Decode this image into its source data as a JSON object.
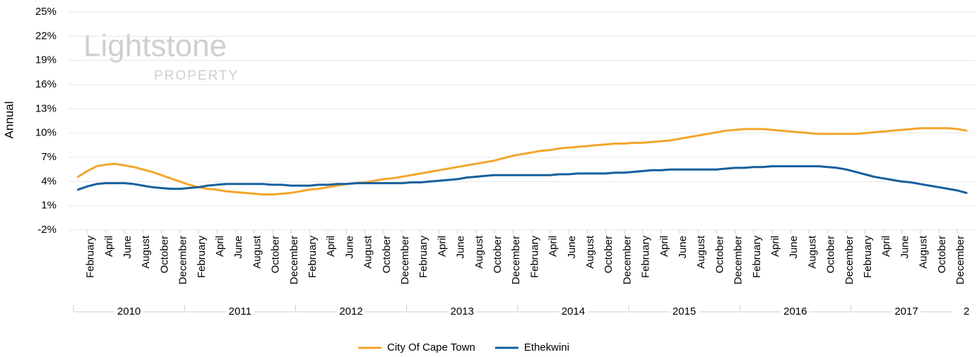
{
  "chart_data": {
    "type": "line",
    "watermark": [
      "Lightstone",
      "PROPERTY"
    ],
    "y_label": "Annual",
    "ylim": [
      -2,
      25
    ],
    "yticks": [
      {
        "value": -2,
        "label": "-2%"
      },
      {
        "value": 1,
        "label": "1%"
      },
      {
        "value": 4,
        "label": "4%"
      },
      {
        "value": 7,
        "label": "7%"
      },
      {
        "value": 10,
        "label": "10%"
      },
      {
        "value": 13,
        "label": "13%"
      },
      {
        "value": 16,
        "label": "16%"
      },
      {
        "value": 19,
        "label": "19%"
      },
      {
        "value": 22,
        "label": "22%"
      },
      {
        "value": 25,
        "label": "25%"
      }
    ],
    "grid": true,
    "categories": [
      null,
      "February",
      null,
      "April",
      null,
      "June",
      null,
      "August",
      null,
      "October",
      null,
      "December",
      null,
      "February",
      null,
      "April",
      null,
      "June",
      null,
      "August",
      null,
      "October",
      null,
      "December",
      null,
      "February",
      null,
      "April",
      null,
      "June",
      null,
      "August",
      null,
      "October",
      null,
      "December",
      null,
      "February",
      null,
      "April",
      null,
      "June",
      null,
      "August",
      null,
      "October",
      null,
      "December",
      null,
      "February",
      null,
      "April",
      null,
      "June",
      null,
      "August",
      null,
      "October",
      null,
      "December",
      null,
      "February",
      null,
      "April",
      null,
      "June",
      null,
      "August",
      null,
      "October",
      null,
      "December",
      null,
      "February",
      null,
      "April",
      null,
      "June",
      null,
      "August",
      null,
      "October",
      null,
      "December",
      null,
      "February",
      null,
      "April",
      null,
      "June",
      null,
      "August",
      null,
      "October",
      null,
      "December",
      null
    ],
    "x_groups": [
      "2010",
      "2011",
      "2012",
      "2013",
      "2014",
      "2015",
      "2016",
      "2017",
      "2"
    ],
    "legend": "bottom",
    "series": [
      {
        "name": "City Of Cape Town",
        "color": "#f2a72b",
        "values": [
          4.6,
          5.3,
          5.9,
          6.1,
          6.2,
          6.0,
          5.8,
          5.5,
          5.2,
          4.8,
          4.4,
          4.0,
          3.6,
          3.3,
          3.1,
          3.0,
          2.8,
          2.7,
          2.6,
          2.5,
          2.4,
          2.4,
          2.5,
          2.6,
          2.8,
          3.0,
          3.1,
          3.3,
          3.5,
          3.7,
          3.8,
          3.9,
          4.1,
          4.3,
          4.4,
          4.6,
          4.8,
          5.0,
          5.2,
          5.4,
          5.6,
          5.8,
          6.0,
          6.2,
          6.4,
          6.6,
          6.9,
          7.2,
          7.4,
          7.6,
          7.8,
          7.9,
          8.1,
          8.2,
          8.3,
          8.4,
          8.5,
          8.6,
          8.7,
          8.7,
          8.8,
          8.8,
          8.9,
          9.0,
          9.1,
          9.3,
          9.5,
          9.7,
          9.9,
          10.1,
          10.3,
          10.4,
          10.5,
          10.5,
          10.5,
          10.4,
          10.3,
          10.2,
          10.1,
          10.0,
          9.9,
          9.9,
          9.9,
          9.9,
          9.9,
          10.0,
          10.1,
          10.2,
          10.3,
          10.4,
          10.5,
          10.6,
          10.6,
          10.6,
          10.6,
          10.5,
          10.3
        ]
      },
      {
        "name": "Ethekwini",
        "color": "#165f9d",
        "values": [
          3.0,
          3.4,
          3.7,
          3.8,
          3.8,
          3.8,
          3.7,
          3.5,
          3.3,
          3.2,
          3.1,
          3.1,
          3.2,
          3.3,
          3.5,
          3.6,
          3.7,
          3.7,
          3.7,
          3.7,
          3.7,
          3.6,
          3.6,
          3.5,
          3.5,
          3.5,
          3.6,
          3.6,
          3.7,
          3.7,
          3.8,
          3.8,
          3.8,
          3.8,
          3.8,
          3.8,
          3.9,
          3.9,
          4.0,
          4.1,
          4.2,
          4.3,
          4.5,
          4.6,
          4.7,
          4.8,
          4.8,
          4.8,
          4.8,
          4.8,
          4.8,
          4.8,
          4.9,
          4.9,
          5.0,
          5.0,
          5.0,
          5.0,
          5.1,
          5.1,
          5.2,
          5.3,
          5.4,
          5.4,
          5.5,
          5.5,
          5.5,
          5.5,
          5.5,
          5.5,
          5.6,
          5.7,
          5.7,
          5.8,
          5.8,
          5.9,
          5.9,
          5.9,
          5.9,
          5.9,
          5.9,
          5.8,
          5.7,
          5.5,
          5.2,
          4.9,
          4.6,
          4.4,
          4.2,
          4.0,
          3.9,
          3.7,
          3.5,
          3.3,
          3.1,
          2.9,
          2.6
        ]
      }
    ]
  }
}
